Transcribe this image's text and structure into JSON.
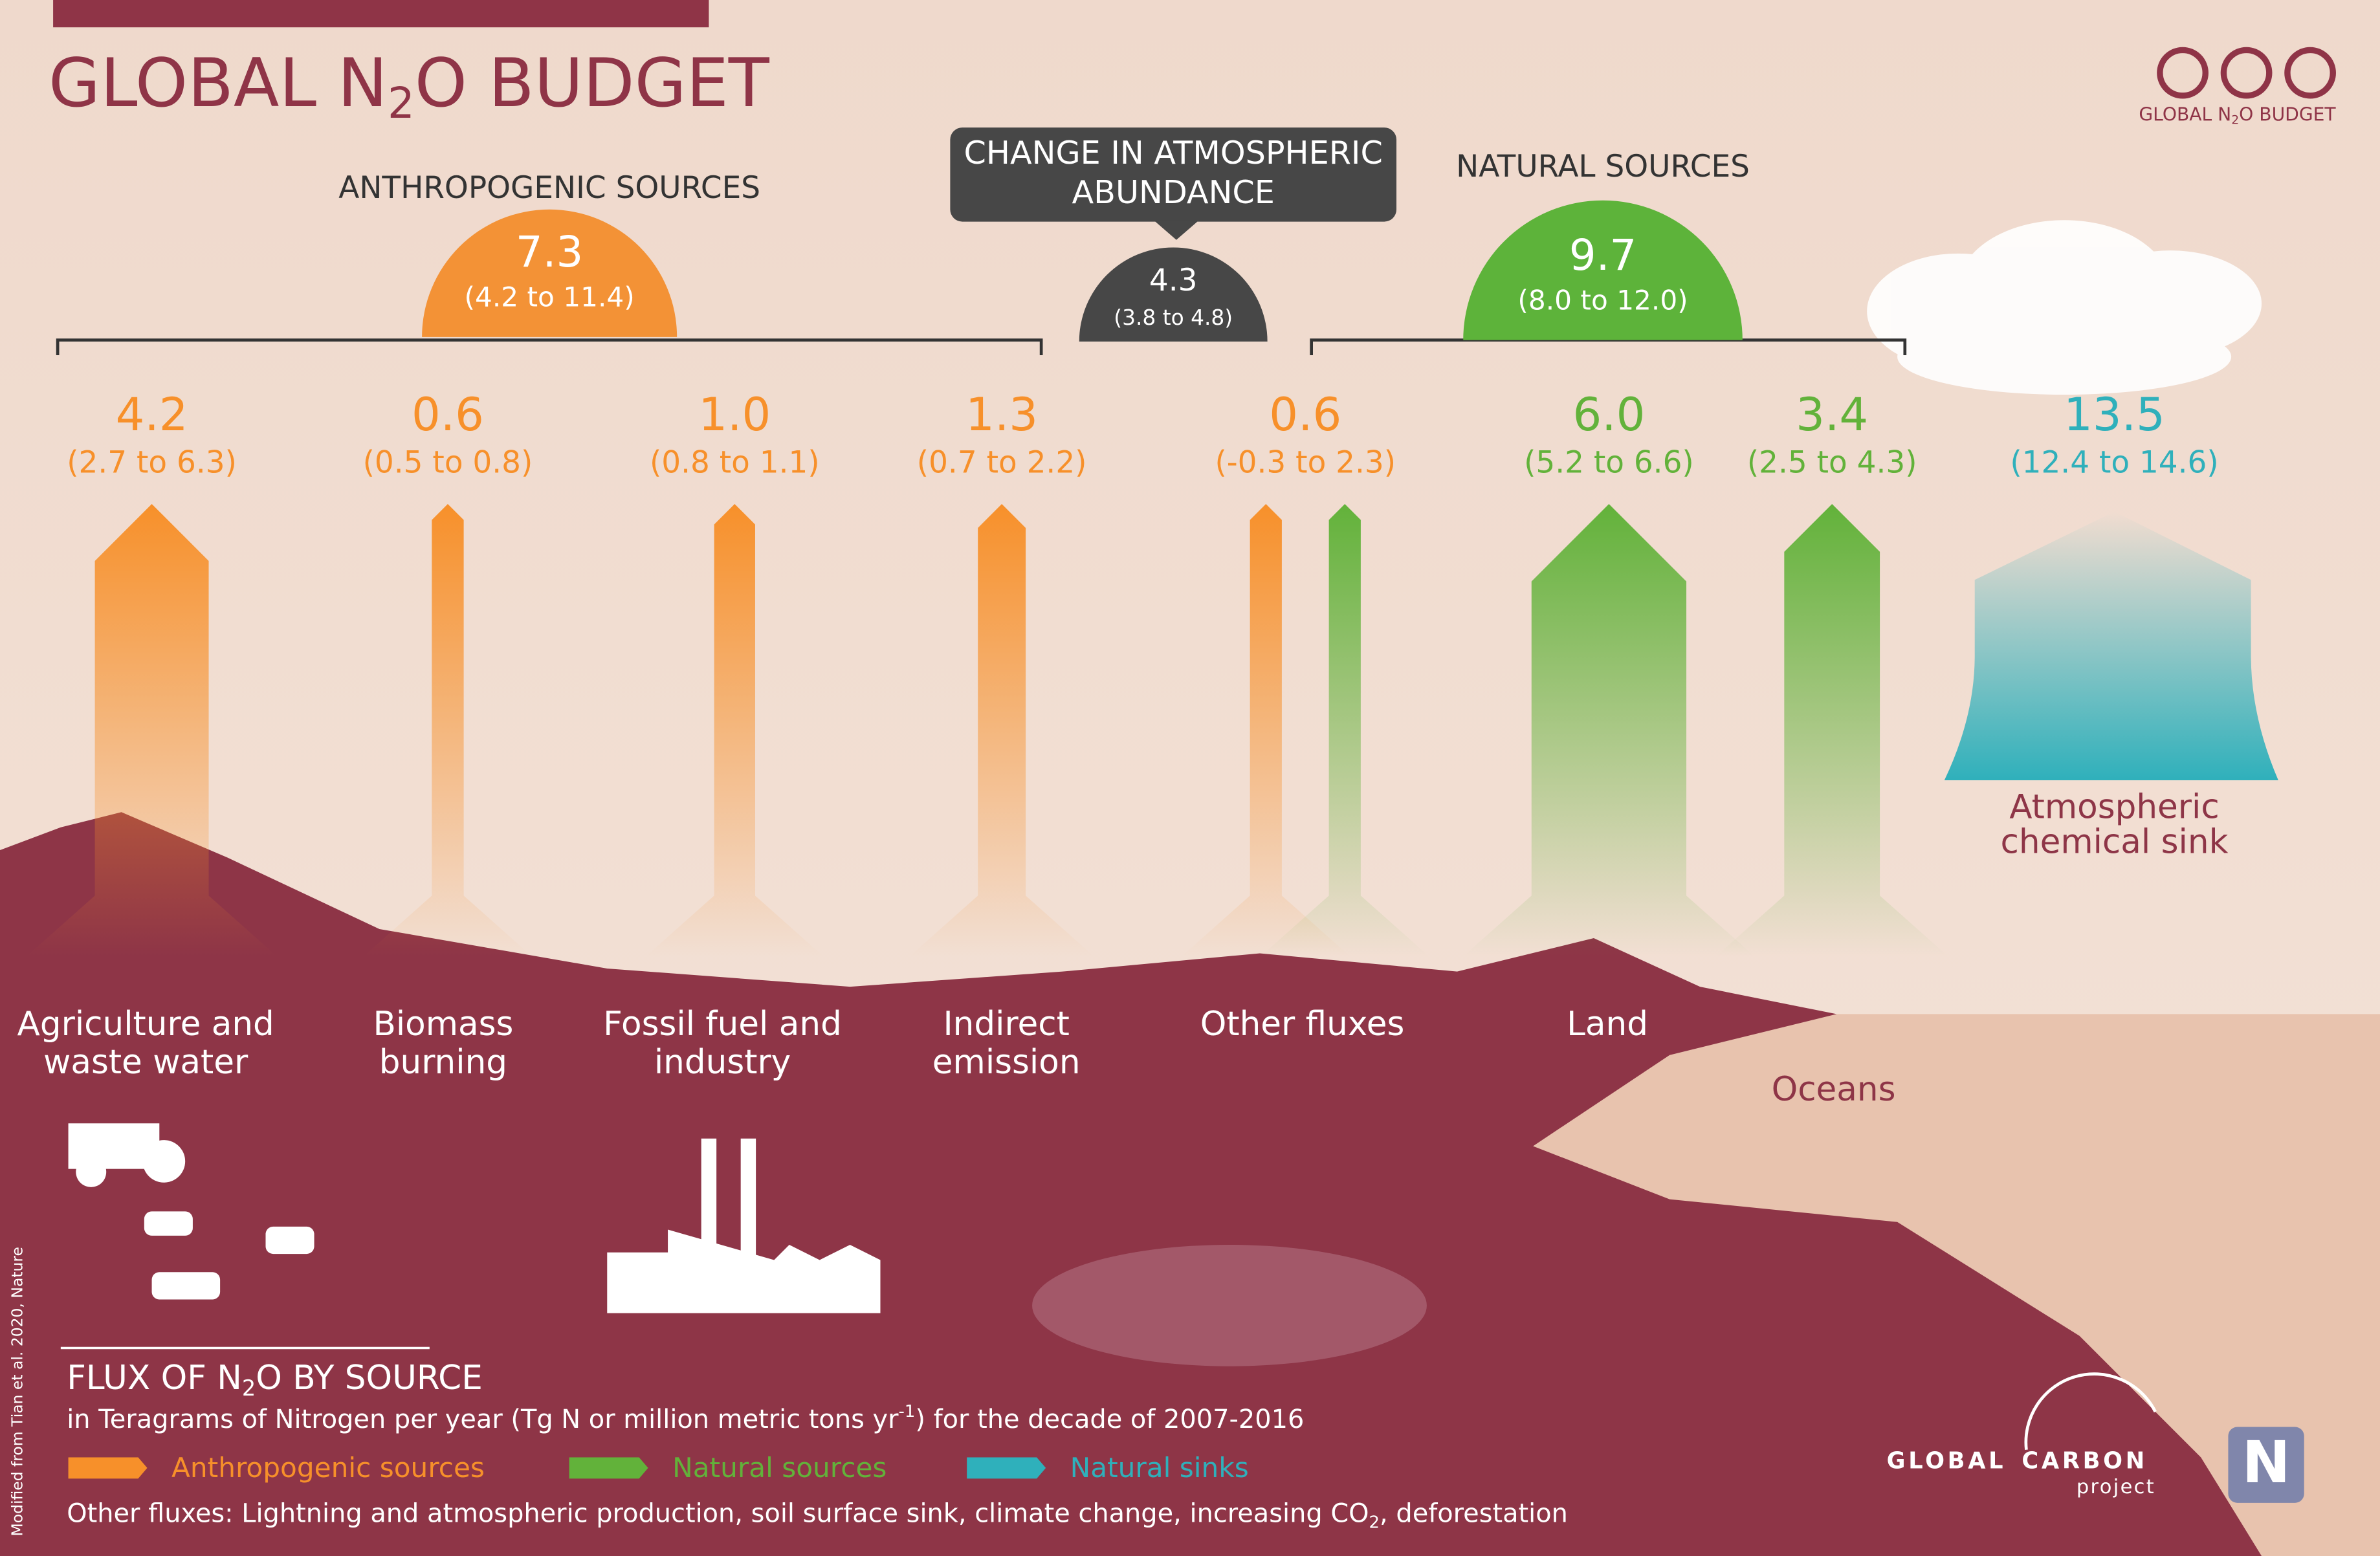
{
  "header": {
    "title": [
      "GLOBAL N",
      "2",
      "O BUDGET"
    ],
    "badge": [
      "GLOBAL N",
      "2",
      "O BUDGET"
    ]
  },
  "anthropogenic": {
    "label": "ANTHROPOGENIC SOURCES",
    "value": "7.3",
    "range": "(4.2 to 11.4)",
    "color": "#f39236"
  },
  "change": {
    "label": [
      "CHANGE IN ATMOSPHERIC",
      "ABUNDANCE"
    ],
    "value": "4.3",
    "range": "(3.8 to 4.8)",
    "color": "#474747"
  },
  "natural": {
    "label": "NATURAL SOURCES",
    "value": "9.7",
    "range": "(8.0 to 12.0)",
    "color": "#5db33a"
  },
  "fluxes": [
    {
      "value": "4.2",
      "range": "(2.7 to 6.3)",
      "label": [
        "Agriculture and",
        "waste water"
      ],
      "colors": [
        "#f7902a"
      ]
    },
    {
      "value": "0.6",
      "range": "(0.5 to 0.8)",
      "label": [
        "Biomass",
        "burning"
      ],
      "colors": [
        "#f7902a"
      ]
    },
    {
      "value": "1.0",
      "range": "(0.8 to 1.1)",
      "label": [
        "Fossil fuel and",
        "industry"
      ],
      "colors": [
        "#f7902a"
      ]
    },
    {
      "value": "1.3",
      "range": "(0.7 to 2.2)",
      "label": [
        "Indirect",
        "emission"
      ],
      "colors": [
        "#f7902a"
      ]
    },
    {
      "value": "0.6",
      "range": "(-0.3 to 2.3)",
      "label": [
        "Other fluxes"
      ],
      "colors": [
        "#f7902a",
        "#62b23a"
      ]
    },
    {
      "value": "6.0",
      "range": "(5.2 to 6.6)",
      "label": [
        "Land"
      ],
      "colors": [
        "#62b23a"
      ]
    },
    {
      "value": "3.4",
      "range": "(2.5 to 4.3)",
      "label": [
        "Oceans"
      ],
      "colors": [
        "#62b23a"
      ]
    }
  ],
  "sink": {
    "value": "13.5",
    "range": "(12.4 to 14.6)",
    "label": [
      "Atmospheric",
      "chemical sink"
    ],
    "color": "#2fb0bb"
  },
  "legend": {
    "title": [
      "FLUX OF N",
      "2",
      "O BY SOURCE"
    ],
    "subtitle": [
      "in Teragrams of Nitrogen per year (Tg N or million metric tons yr",
      "-1",
      ") for the decade of 2007-2016"
    ],
    "items": [
      {
        "name": "Anthropogenic sources",
        "color": "#f7902a"
      },
      {
        "name": "Natural sources",
        "color": "#62b23a"
      },
      {
        "name": "Natural sinks",
        "color": "#2fb0bb"
      }
    ],
    "note": [
      "Other fluxes: Lightning and atmospheric production, soil surface sink, climate change, increasing CO",
      "2",
      ", deforestation"
    ]
  },
  "credit": "Modified from Tian et al. 2020, Nature",
  "logo": {
    "words": [
      "GLOBAL",
      "CARBON",
      "project"
    ],
    "n": "N"
  }
}
